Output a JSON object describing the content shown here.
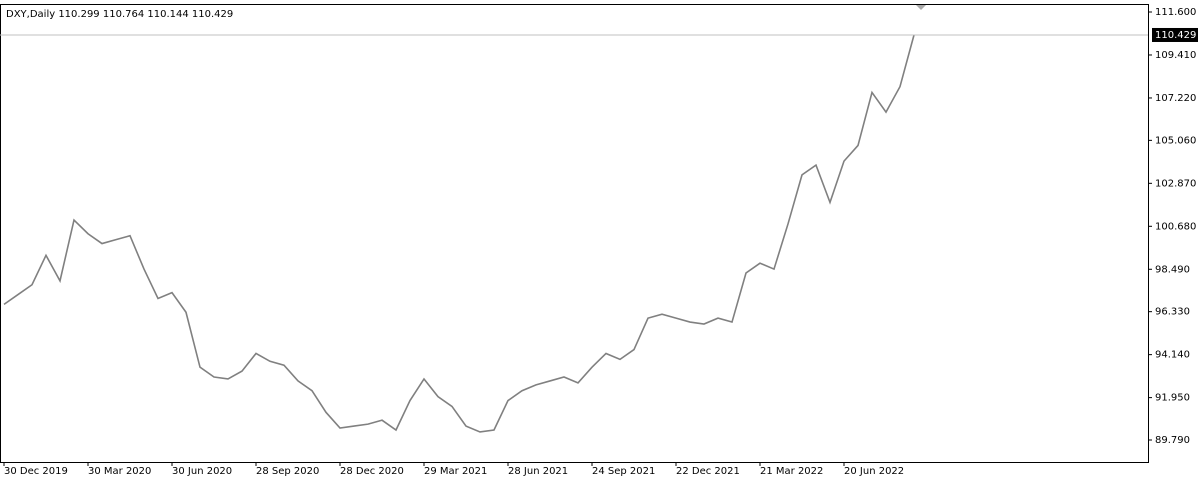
{
  "chart_data": {
    "type": "line",
    "title": "DXY,Daily  110.299 110.764 110.144 110.429",
    "categories": [
      "30 Dec 2019",
      null,
      null,
      null,
      null,
      null,
      "30 Mar 2020",
      null,
      null,
      null,
      null,
      null,
      "30 Jun 2020",
      null,
      null,
      null,
      null,
      null,
      "28 Sep 2020",
      null,
      null,
      null,
      null,
      null,
      "28 Dec 2020",
      null,
      null,
      null,
      null,
      null,
      "29 Mar 2021",
      null,
      null,
      null,
      null,
      null,
      "28 Jun 2021",
      null,
      null,
      null,
      null,
      null,
      "24 Sep 2021",
      null,
      null,
      null,
      null,
      null,
      "22 Dec 2021",
      null,
      null,
      null,
      null,
      null,
      "21 Mar 2022",
      null,
      null,
      null,
      null,
      null,
      "20 Jun 2022",
      null,
      null,
      null,
      null,
      null
    ],
    "values": [
      96.7,
      97.2,
      97.7,
      99.2,
      97.9,
      101.0,
      100.3,
      99.8,
      100.0,
      100.2,
      98.5,
      97.0,
      97.3,
      96.3,
      93.5,
      93.0,
      92.9,
      93.3,
      94.2,
      93.8,
      93.6,
      92.8,
      92.3,
      91.2,
      90.4,
      90.5,
      90.6,
      90.8,
      90.3,
      91.8,
      92.9,
      92.0,
      91.5,
      90.5,
      90.2,
      90.3,
      91.8,
      92.3,
      92.6,
      92.8,
      93.0,
      92.7,
      93.5,
      94.2,
      93.9,
      94.4,
      96.0,
      96.2,
      96.0,
      95.8,
      95.7,
      96.0,
      95.8,
      98.3,
      98.8,
      98.5,
      100.8,
      103.3,
      103.8,
      101.9,
      104.0,
      104.8,
      107.5,
      106.5,
      107.8,
      110.429
    ],
    "color": "#808080",
    "ylim": [
      88.669,
      111.957
    ],
    "yticks": [
      {
        "value": 89.79,
        "label": "89.790"
      },
      {
        "value": 91.95,
        "label": "91.950"
      },
      {
        "value": 94.14,
        "label": "94.140"
      },
      {
        "value": 96.33,
        "label": "96.330"
      },
      {
        "value": 98.49,
        "label": "98.490"
      },
      {
        "value": 100.68,
        "label": "100.680"
      },
      {
        "value": 102.87,
        "label": "102.870"
      },
      {
        "value": 105.06,
        "label": "105.060"
      },
      {
        "value": 107.22,
        "label": "107.220"
      },
      {
        "value": 109.41,
        "label": "109.410"
      },
      {
        "value": 111.6,
        "label": "111.600"
      }
    ],
    "price_line": {
      "value": 110.429,
      "label": "110.429"
    }
  }
}
